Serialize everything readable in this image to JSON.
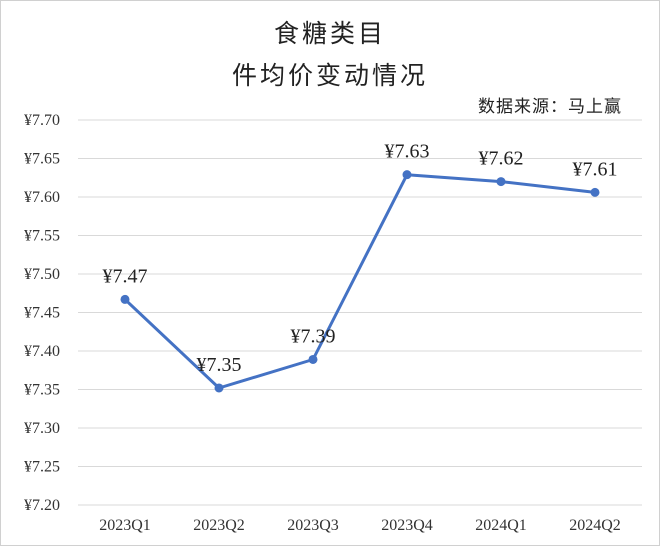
{
  "chart_data": {
    "type": "line",
    "title_lines": [
      "食糖类目",
      "件均价变动情况"
    ],
    "source": "数据来源：马上赢",
    "categories": [
      "2023Q1",
      "2023Q2",
      "2023Q3",
      "2023Q4",
      "2024Q1",
      "2024Q2"
    ],
    "values": [
      7.47,
      7.35,
      7.39,
      7.63,
      7.62,
      7.61
    ],
    "plotted_values": [
      7.467,
      7.352,
      7.389,
      7.629,
      7.62,
      7.606
    ],
    "data_labels": [
      "¥7.47",
      "¥7.35",
      "¥7.39",
      "¥7.63",
      "¥7.62",
      "¥7.61"
    ],
    "yticks": [
      "¥7.20",
      "¥7.25",
      "¥7.30",
      "¥7.35",
      "¥7.40",
      "¥7.45",
      "¥7.50",
      "¥7.55",
      "¥7.60",
      "¥7.65",
      "¥7.70"
    ],
    "ylim": [
      7.2,
      7.7
    ],
    "grid": true,
    "series_color": "#4472c4"
  }
}
